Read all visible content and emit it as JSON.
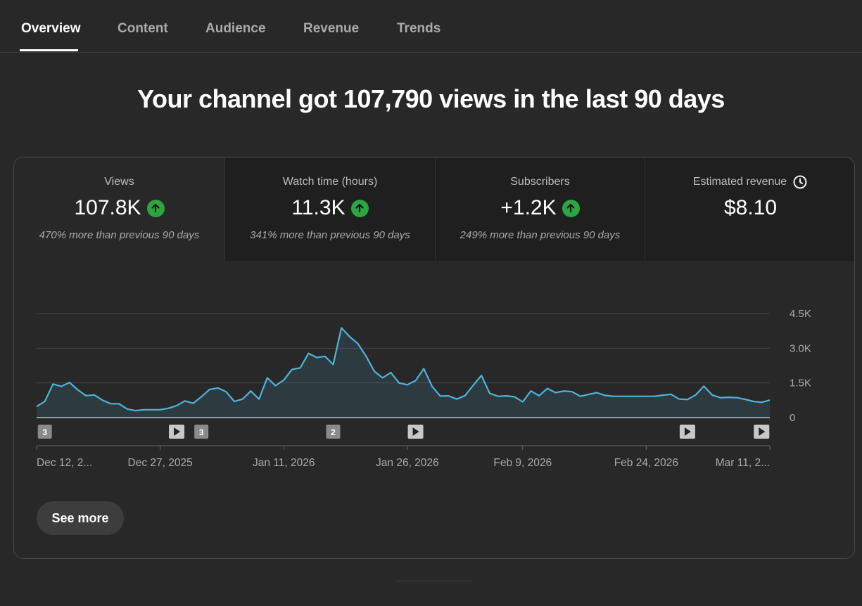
{
  "tabs": [
    {
      "label": "Overview",
      "active": true
    },
    {
      "label": "Content",
      "active": false
    },
    {
      "label": "Audience",
      "active": false
    },
    {
      "label": "Revenue",
      "active": false
    },
    {
      "label": "Trends",
      "active": false
    }
  ],
  "headline": "Your channel got 107,790 views in the last 90 days",
  "metrics": [
    {
      "label": "Views",
      "value": "107.8K",
      "trend_icon": "arrow-up-icon",
      "change": "470% more than previous 90 days"
    },
    {
      "label": "Watch time (hours)",
      "value": "11.3K",
      "trend_icon": "arrow-up-icon",
      "change": "341% more than previous 90 days"
    },
    {
      "label": "Subscribers",
      "value": "+1.2K",
      "trend_icon": "arrow-up-icon",
      "change": "249% more than previous 90 days"
    },
    {
      "label": "Estimated revenue",
      "value": "$8.10",
      "label_icon": "clock-icon"
    }
  ],
  "see_more_label": "See more",
  "colors": {
    "line": "#4fb3d9",
    "trend_up": "#2ba640"
  },
  "chart_data": {
    "type": "area",
    "y_ticks": [
      "4.5K",
      "3.0K",
      "1.5K",
      "0"
    ],
    "y_tick_values": [
      4500,
      3000,
      1500,
      0
    ],
    "ylim": [
      0,
      4500
    ],
    "grid": true,
    "x_tick_labels": [
      "Dec 12, 2...",
      "Dec 27, 2025",
      "Jan 11, 2026",
      "Jan 26, 2026",
      "Feb 9, 2026",
      "Feb 24, 2026",
      "Mar 11, 2..."
    ],
    "x_tick_days": [
      0,
      15,
      30,
      45,
      59,
      74,
      89
    ],
    "series": [
      {
        "values": [
          480,
          700,
          1450,
          1350,
          1520,
          1200,
          950,
          980,
          750,
          600,
          600,
          370,
          300,
          340,
          340,
          340,
          400,
          520,
          720,
          620,
          900,
          1220,
          1280,
          1120,
          700,
          800,
          1150,
          800,
          1720,
          1380,
          1620,
          2080,
          2150,
          2780,
          2600,
          2650,
          2300,
          3880,
          3500,
          3200,
          2650,
          2000,
          1720,
          1950,
          1500,
          1420,
          1600,
          2120,
          1350,
          930,
          940,
          800,
          950,
          1400,
          1820,
          1050,
          920,
          940,
          900,
          680,
          1150,
          950,
          1260,
          1080,
          1150,
          1120,
          920,
          1000,
          1080,
          960,
          920,
          920,
          920,
          920,
          920,
          920,
          970,
          1010,
          800,
          780,
          980,
          1360,
          980,
          860,
          880,
          860,
          790,
          700,
          660,
          760
        ]
      }
    ],
    "markers": [
      {
        "day": 1,
        "label": "3",
        "kind": "count"
      },
      {
        "day": 17,
        "label": "",
        "kind": "video"
      },
      {
        "day": 20,
        "label": "3",
        "kind": "count"
      },
      {
        "day": 36,
        "label": "2",
        "kind": "count"
      },
      {
        "day": 46,
        "label": "",
        "kind": "video"
      },
      {
        "day": 79,
        "label": "",
        "kind": "video"
      },
      {
        "day": 88,
        "label": "",
        "kind": "video"
      }
    ]
  }
}
